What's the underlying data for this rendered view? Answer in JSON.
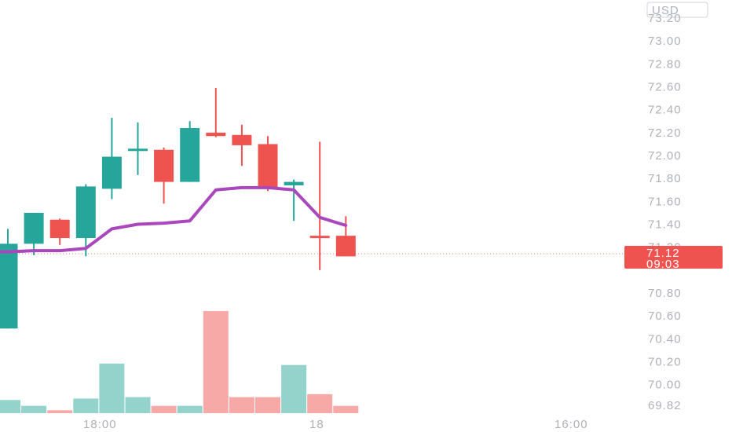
{
  "chart_data": {
    "type": "candlestick",
    "currency": "USD",
    "y_axis_ticks": [
      "73.20",
      "73.00",
      "72.80",
      "72.60",
      "72.40",
      "72.20",
      "72.00",
      "71.80",
      "71.60",
      "71.40",
      "71.20",
      "70.80",
      "70.60",
      "70.40",
      "70.20",
      "70.00",
      "69.82"
    ],
    "ylim": [
      69.82,
      73.2
    ],
    "x_axis_labels": [
      "18:00",
      "18",
      "16:00"
    ],
    "last_price": "71.12",
    "countdown": "09:03",
    "colors": {
      "up": "#26a69a",
      "down": "#ef5350",
      "ma": "#ab47bc",
      "vol_up": "#93d3cc",
      "vol_down": "#f7a9a7",
      "tag": "#ef5350"
    },
    "candles": [
      {
        "open": 70.49,
        "high": 71.36,
        "low": 70.49,
        "close": 71.23,
        "volume": 9
      },
      {
        "open": 71.23,
        "high": 71.5,
        "low": 71.13,
        "close": 71.5,
        "volume": 5
      },
      {
        "open": 71.44,
        "high": 71.45,
        "low": 71.22,
        "close": 71.28,
        "volume": 2
      },
      {
        "open": 71.28,
        "high": 71.75,
        "low": 71.12,
        "close": 71.73,
        "volume": 10
      },
      {
        "open": 71.71,
        "high": 72.33,
        "low": 71.62,
        "close": 71.99,
        "volume": 34
      },
      {
        "open": 72.06,
        "high": 72.29,
        "low": 71.83,
        "close": 72.06,
        "volume": 11
      },
      {
        "open": 72.05,
        "high": 72.07,
        "low": 71.58,
        "close": 71.77,
        "volume": 5
      },
      {
        "open": 71.77,
        "high": 72.3,
        "low": 71.77,
        "close": 72.24,
        "volume": 5
      },
      {
        "open": 72.2,
        "high": 72.59,
        "low": 72.16,
        "close": 72.17,
        "volume": 70
      },
      {
        "open": 72.18,
        "high": 72.27,
        "low": 71.91,
        "close": 72.09,
        "volume": 11
      },
      {
        "open": 72.1,
        "high": 72.17,
        "low": 71.69,
        "close": 71.71,
        "volume": 11
      },
      {
        "open": 71.74,
        "high": 71.79,
        "low": 71.43,
        "close": 71.77,
        "volume": 33
      },
      {
        "open": 71.3,
        "high": 72.12,
        "low": 71.0,
        "close": 71.28,
        "volume": 13
      },
      {
        "open": 71.3,
        "high": 71.47,
        "low": 71.12,
        "close": 71.12,
        "volume": 5
      }
    ],
    "moving_average": [
      71.16,
      71.17,
      71.17,
      71.19,
      71.36,
      71.4,
      71.41,
      71.43,
      71.7,
      71.72,
      71.72,
      71.7,
      71.46,
      71.39
    ]
  }
}
